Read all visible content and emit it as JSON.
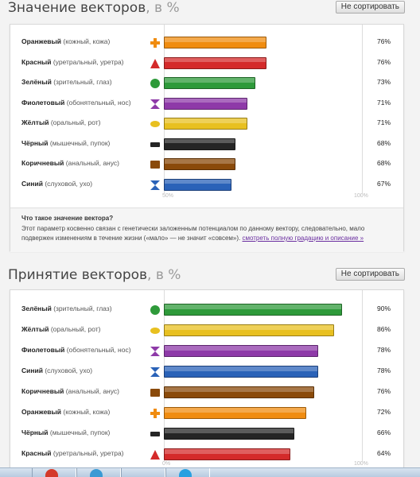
{
  "sections": [
    {
      "title": "Значение векторов",
      "unit": ", в %",
      "sort_button": "Не сортировать",
      "axis_labels": [
        "50%",
        "100%"
      ],
      "info": {
        "title": "Что такое значение вектора?",
        "text": "Этот параметр косвенно связан с генетически заложенным потенциалом по данному вектору, следовательно, мало подвержен изменениям в течение жизни («мало» — не значит «совсем»).",
        "link": "смотреть полную градацию и описание »"
      },
      "rows": [
        {
          "name": "Оранжевый",
          "desc": "(кожный, кожа)",
          "icon": "orange-plus-icon",
          "color": "#f08c10",
          "value": "76%"
        },
        {
          "name": "Красный",
          "desc": "(уретральный, уретра)",
          "icon": "red-triangle-icon",
          "color": "#d42a2a",
          "value": "76%"
        },
        {
          "name": "Зелёный",
          "desc": "(зрительный, глаз)",
          "icon": "green-circle-icon",
          "color": "#2e9a3a",
          "value": "73%"
        },
        {
          "name": "Фиолетовый",
          "desc": "(обонятельный, нос)",
          "icon": "purple-hourglass-icon",
          "color": "#8e3aa8",
          "value": "71%"
        },
        {
          "name": "Жёлтый",
          "desc": "(оральный, рот)",
          "icon": "yellow-ellipse-icon",
          "color": "#e8c020",
          "value": "71%"
        },
        {
          "name": "Чёрный",
          "desc": "(мышечный, пупок)",
          "icon": "black-rectangle-icon",
          "color": "#252525",
          "value": "68%"
        },
        {
          "name": "Коричневый",
          "desc": "(анальный, анус)",
          "icon": "brown-square-icon",
          "color": "#8a4a0a",
          "value": "68%"
        },
        {
          "name": "Синий",
          "desc": "(слуховой, ухо)",
          "icon": "blue-hourglass-icon",
          "color": "#2a62b8",
          "value": "67%"
        }
      ]
    },
    {
      "title": "Принятие векторов",
      "unit": ", в %",
      "sort_button": "Не сортировать",
      "axis_labels": [
        "0%",
        "100%"
      ],
      "rows": [
        {
          "name": "Зелёный",
          "desc": "(зрительный, глаз)",
          "icon": "green-circle-icon",
          "color": "#2e9a3a",
          "value": "90%"
        },
        {
          "name": "Жёлтый",
          "desc": "(оральный, рот)",
          "icon": "yellow-ellipse-icon",
          "color": "#e8c020",
          "value": "86%"
        },
        {
          "name": "Фиолетовый",
          "desc": "(обонятельный, нос)",
          "icon": "purple-hourglass-icon",
          "color": "#8e3aa8",
          "value": "78%"
        },
        {
          "name": "Синий",
          "desc": "(слуховой, ухо)",
          "icon": "blue-hourglass-icon",
          "color": "#2a62b8",
          "value": "78%"
        },
        {
          "name": "Коричневый",
          "desc": "(анальный, анус)",
          "icon": "brown-square-icon",
          "color": "#8a4a0a",
          "value": "76%"
        },
        {
          "name": "Оранжевый",
          "desc": "(кожный, кожа)",
          "icon": "orange-plus-icon",
          "color": "#f08c10",
          "value": "72%"
        },
        {
          "name": "Чёрный",
          "desc": "(мышечный, пупок)",
          "icon": "black-rectangle-icon",
          "color": "#252525",
          "value": "66%"
        },
        {
          "name": "Красный",
          "desc": "(уретральный, уретра)",
          "icon": "red-triangle-icon",
          "color": "#d42a2a",
          "value": "64%"
        }
      ]
    }
  ]
}
